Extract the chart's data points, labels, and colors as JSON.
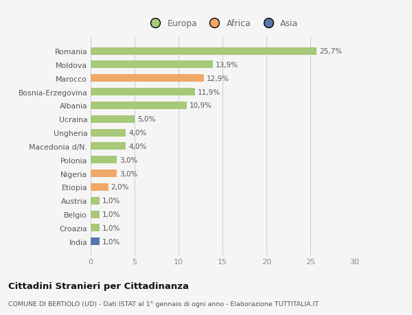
{
  "categories": [
    "India",
    "Croazia",
    "Belgio",
    "Austria",
    "Etiopia",
    "Nigeria",
    "Polonia",
    "Macedonia d/N.",
    "Ungheria",
    "Ucraina",
    "Albania",
    "Bosnia-Erzegovina",
    "Marocco",
    "Moldova",
    "Romania"
  ],
  "values": [
    1.0,
    1.0,
    1.0,
    1.0,
    2.0,
    3.0,
    3.0,
    4.0,
    4.0,
    5.0,
    10.9,
    11.9,
    12.9,
    13.9,
    25.7
  ],
  "labels": [
    "1,0%",
    "1,0%",
    "1,0%",
    "1,0%",
    "2,0%",
    "3,0%",
    "3,0%",
    "4,0%",
    "4,0%",
    "5,0%",
    "10,9%",
    "11,9%",
    "12,9%",
    "13,9%",
    "25,7%"
  ],
  "continent": [
    "Asia",
    "Europa",
    "Europa",
    "Europa",
    "Africa",
    "Africa",
    "Europa",
    "Europa",
    "Europa",
    "Europa",
    "Europa",
    "Europa",
    "Africa",
    "Europa",
    "Europa"
  ],
  "colors": {
    "Europa": "#a8c87a",
    "Africa": "#f0a868",
    "Asia": "#5577aa"
  },
  "bg_color": "#f5f5f5",
  "title": "Cittadini Stranieri per Cittadinanza",
  "subtitle": "COMUNE DI BERTIOLO (UD) - Dati ISTAT al 1° gennaio di ogni anno - Elaborazione TUTTITALIA.IT",
  "xlabel_range": [
    0,
    30
  ],
  "xticks": [
    0,
    5,
    10,
    15,
    20,
    25,
    30
  ],
  "legend_labels": [
    "Europa",
    "Africa",
    "Asia"
  ],
  "legend_colors": [
    "#a8c87a",
    "#f0a868",
    "#5577aa"
  ]
}
